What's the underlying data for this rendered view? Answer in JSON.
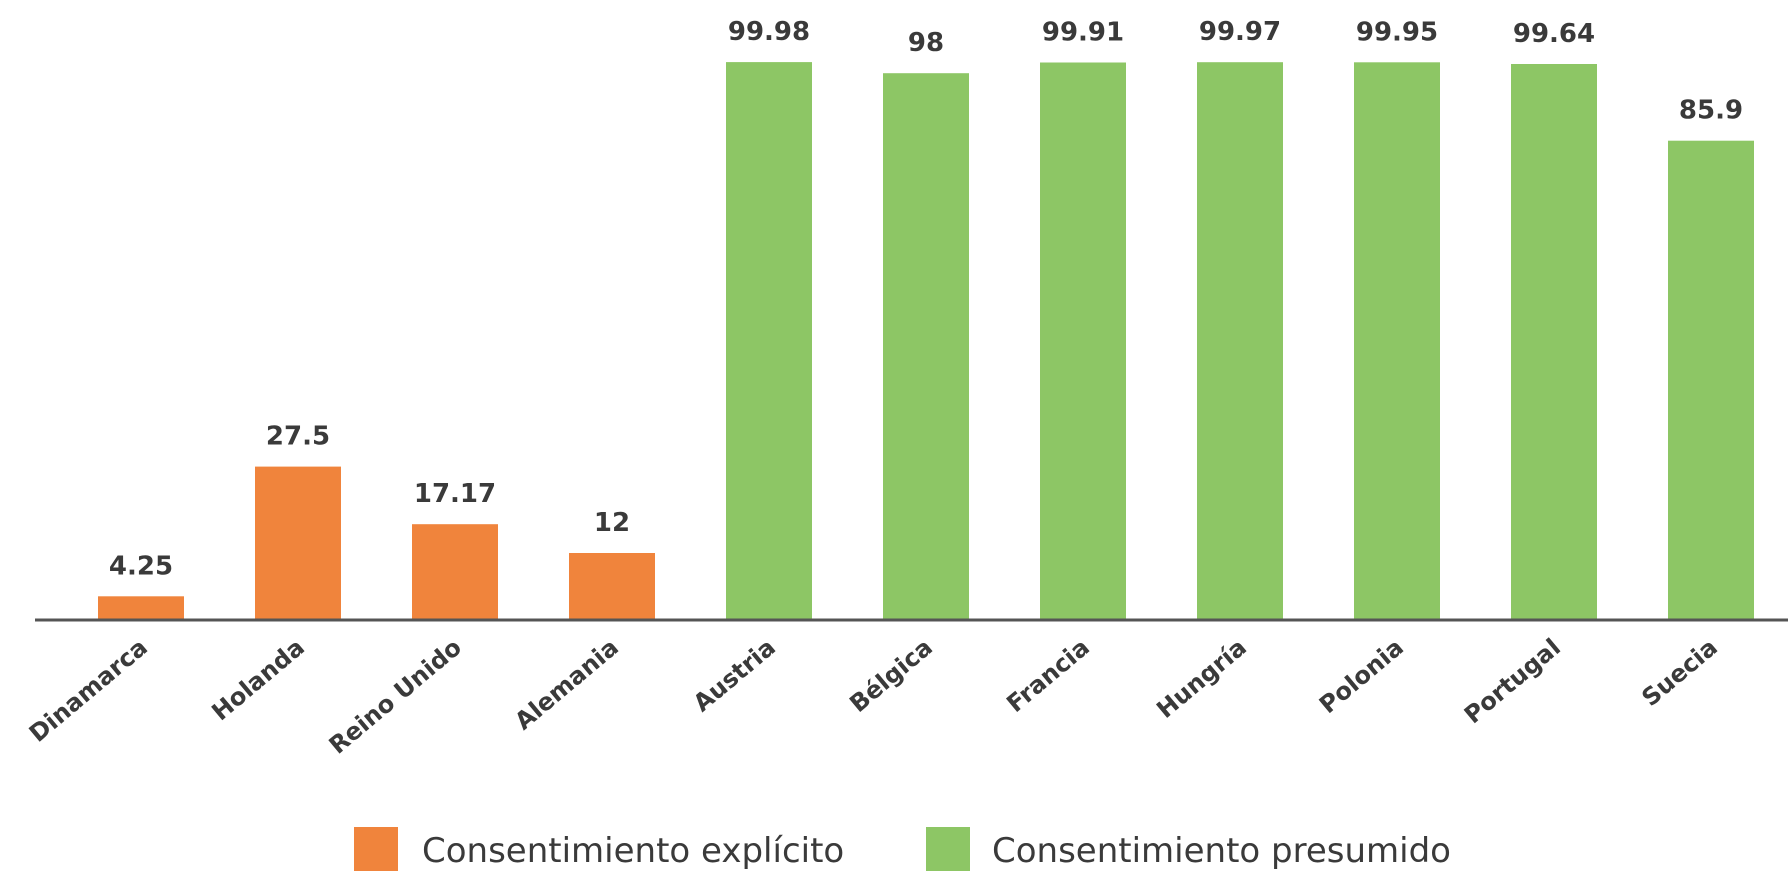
{
  "chart_data": {
    "type": "bar",
    "title": "",
    "xlabel": "",
    "ylabel": "",
    "ylim": [
      0,
      100
    ],
    "grid": false,
    "legend_position": "bottom",
    "categories": [
      "Dinamarca",
      "Holanda",
      "Reino Unido",
      "Alemania",
      "Austria",
      "Bélgica",
      "Francia",
      "Hungría",
      "Polonia",
      "Portugal",
      "Suecia"
    ],
    "values": [
      4.25,
      27.5,
      17.17,
      12,
      99.98,
      98,
      99.91,
      99.97,
      99.95,
      99.64,
      85.9
    ],
    "value_labels": [
      "4.25",
      "27.5",
      "17.17",
      "12",
      "99.98",
      "98",
      "99.91",
      "99.97",
      "99.95",
      "99.64",
      "85.9"
    ],
    "groups": [
      0,
      0,
      0,
      0,
      1,
      1,
      1,
      1,
      1,
      1,
      1
    ],
    "series": [
      {
        "name": "Consentimiento explícito",
        "color": "#f0843c"
      },
      {
        "name": "Consentimiento presumido",
        "color": "#8dc665"
      }
    ],
    "axis_color": "#555555"
  }
}
